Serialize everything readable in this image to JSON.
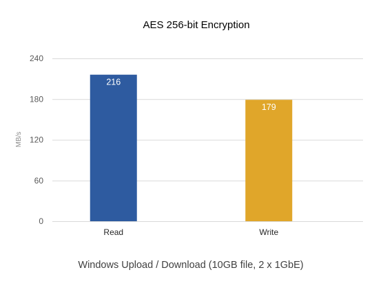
{
  "chart_data": {
    "type": "bar",
    "title": "AES 256-bit Encryption",
    "subtitle": "Windows Upload / Download (10GB file, 2 x 1GbE)",
    "ylabel": "MB/s",
    "xlabel": "",
    "categories": [
      "Read",
      "Write"
    ],
    "values": [
      216,
      179
    ],
    "data_labels": [
      "216",
      "179"
    ],
    "bar_colors": [
      "#2e5ba0",
      "#e0a62a"
    ],
    "ylim": [
      0,
      240
    ],
    "yticks": [
      0,
      60,
      120,
      180,
      240
    ],
    "ytick_labels": [
      "0",
      "60",
      "120",
      "180",
      "240"
    ],
    "grid": true,
    "legend": "none"
  }
}
